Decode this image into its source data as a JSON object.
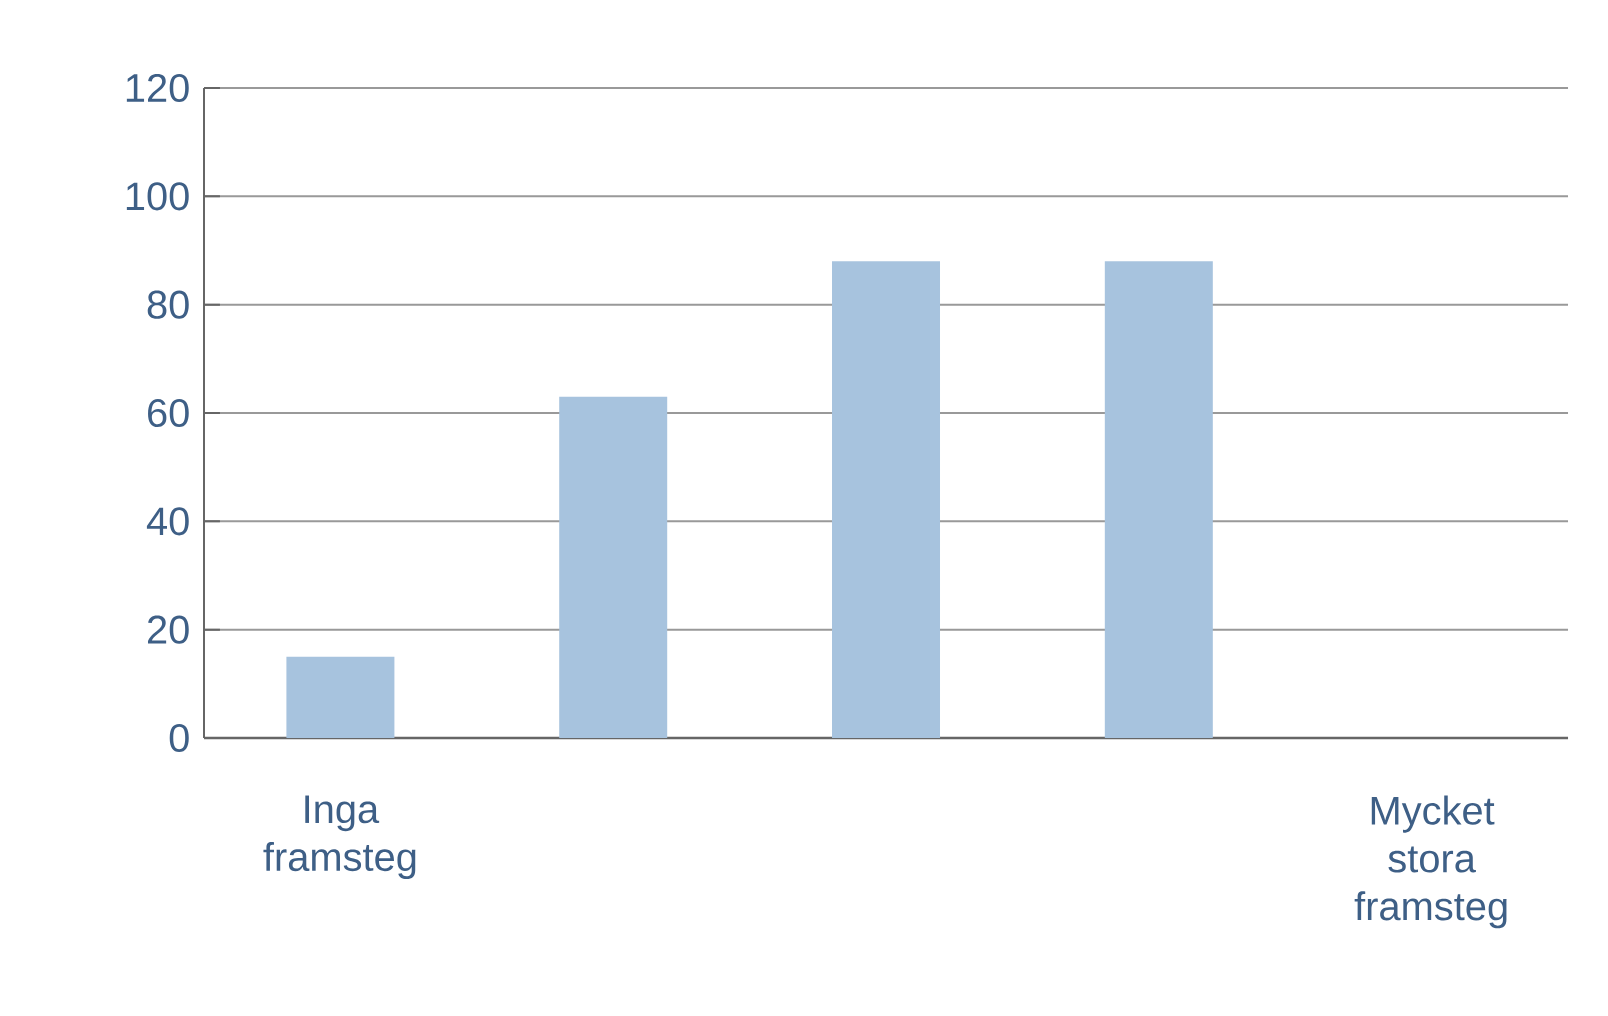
{
  "chart_data": {
    "type": "bar",
    "categories": [
      "Inga framsteg",
      null,
      null,
      null,
      "Mycket stora framsteg"
    ],
    "values": [
      15,
      63,
      88,
      88,
      0
    ],
    "color": "#a7c3de",
    "ylim": [
      0,
      120
    ],
    "yticks": [
      0,
      20,
      40,
      60,
      80,
      100,
      120
    ],
    "grid": "y"
  }
}
